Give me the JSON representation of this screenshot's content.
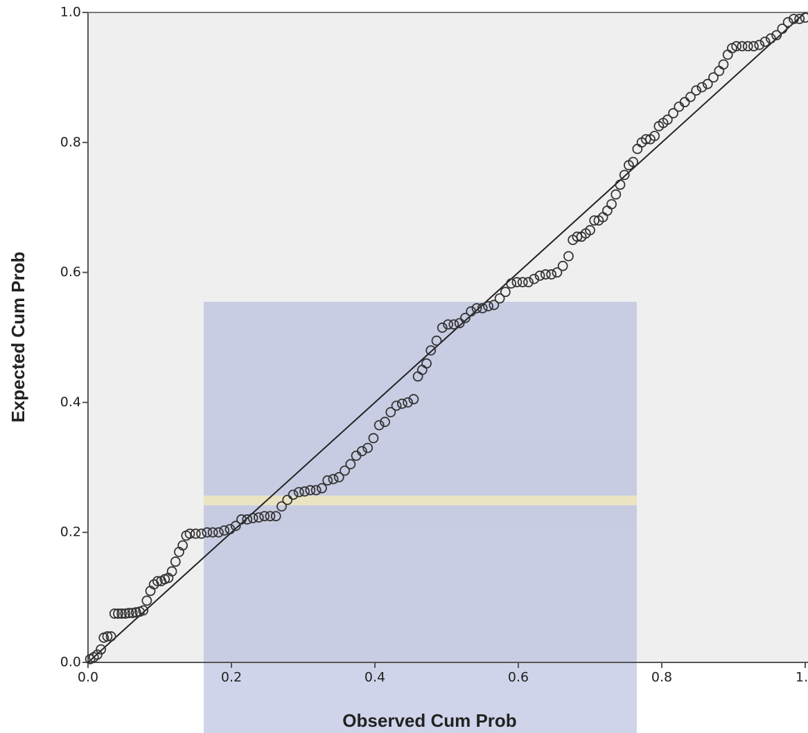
{
  "chart_data": {
    "type": "scatter",
    "x_label": "Observed Cum Prob",
    "y_label": "Expected Cum Prob",
    "xlim": [
      0,
      1
    ],
    "ylim": [
      0,
      1
    ],
    "xticks": [
      {
        "value": 0,
        "label": "0.0"
      },
      0.2,
      0.4,
      0.6,
      0.8,
      {
        "value": 1,
        "label": "1."
      }
    ],
    "yticks": [
      {
        "value": 0,
        "label": "0.0"
      },
      0.2,
      0.4,
      0.6,
      0.8,
      {
        "value": 1,
        "label": "1.0"
      }
    ],
    "reference_line": true,
    "color": "#333333",
    "x": [
      0.003,
      0.008,
      0.013,
      0.018,
      0.022,
      0.027,
      0.032,
      0.037,
      0.042,
      0.047,
      0.052,
      0.057,
      0.062,
      0.067,
      0.072,
      0.077,
      0.082,
      0.087,
      0.092,
      0.097,
      0.102,
      0.107,
      0.112,
      0.117,
      0.122,
      0.127,
      0.132,
      0.137,
      0.142,
      0.15,
      0.158,
      0.166,
      0.174,
      0.182,
      0.19,
      0.198,
      0.206,
      0.214,
      0.222,
      0.23,
      0.238,
      0.246,
      0.254,
      0.262,
      0.27,
      0.278,
      0.286,
      0.294,
      0.302,
      0.31,
      0.318,
      0.326,
      0.334,
      0.342,
      0.35,
      0.358,
      0.366,
      0.374,
      0.382,
      0.39,
      0.398,
      0.406,
      0.414,
      0.422,
      0.43,
      0.438,
      0.446,
      0.454,
      0.46,
      0.466,
      0.472,
      0.478,
      0.486,
      0.494,
      0.502,
      0.51,
      0.518,
      0.526,
      0.534,
      0.542,
      0.55,
      0.558,
      0.566,
      0.574,
      0.582,
      0.59,
      0.598,
      0.606,
      0.614,
      0.622,
      0.63,
      0.638,
      0.646,
      0.654,
      0.662,
      0.67,
      0.676,
      0.682,
      0.688,
      0.694,
      0.7,
      0.706,
      0.712,
      0.718,
      0.724,
      0.73,
      0.736,
      0.742,
      0.748,
      0.754,
      0.76,
      0.766,
      0.772,
      0.778,
      0.784,
      0.79,
      0.796,
      0.802,
      0.808,
      0.816,
      0.824,
      0.832,
      0.84,
      0.848,
      0.856,
      0.864,
      0.872,
      0.88,
      0.886,
      0.892,
      0.898,
      0.904,
      0.912,
      0.92,
      0.928,
      0.936,
      0.944,
      0.952,
      0.96,
      0.968,
      0.976,
      0.984,
      0.992,
      1.0
    ],
    "values": [
      0.005,
      0.008,
      0.012,
      0.02,
      0.038,
      0.04,
      0.04,
      0.075,
      0.075,
      0.075,
      0.075,
      0.076,
      0.076,
      0.077,
      0.078,
      0.08,
      0.095,
      0.11,
      0.12,
      0.125,
      0.125,
      0.128,
      0.13,
      0.14,
      0.155,
      0.17,
      0.18,
      0.195,
      0.198,
      0.198,
      0.198,
      0.2,
      0.2,
      0.2,
      0.203,
      0.205,
      0.21,
      0.22,
      0.22,
      0.222,
      0.223,
      0.225,
      0.225,
      0.225,
      0.24,
      0.25,
      0.258,
      0.262,
      0.263,
      0.265,
      0.265,
      0.268,
      0.28,
      0.282,
      0.285,
      0.295,
      0.305,
      0.318,
      0.325,
      0.33,
      0.345,
      0.365,
      0.37,
      0.385,
      0.395,
      0.398,
      0.4,
      0.405,
      0.44,
      0.45,
      0.46,
      0.48,
      0.495,
      0.515,
      0.52,
      0.52,
      0.522,
      0.53,
      0.54,
      0.545,
      0.545,
      0.548,
      0.55,
      0.56,
      0.57,
      0.583,
      0.585,
      0.585,
      0.585,
      0.59,
      0.595,
      0.597,
      0.597,
      0.6,
      0.61,
      0.625,
      0.65,
      0.655,
      0.655,
      0.66,
      0.665,
      0.68,
      0.68,
      0.685,
      0.695,
      0.705,
      0.72,
      0.735,
      0.75,
      0.765,
      0.77,
      0.79,
      0.8,
      0.805,
      0.805,
      0.81,
      0.825,
      0.83,
      0.835,
      0.845,
      0.855,
      0.862,
      0.87,
      0.88,
      0.885,
      0.89,
      0.9,
      0.91,
      0.92,
      0.935,
      0.945,
      0.948,
      0.948,
      0.948,
      0.948,
      0.95,
      0.955,
      0.96,
      0.965,
      0.975,
      0.985,
      0.99,
      0.99,
      0.992
    ]
  }
}
